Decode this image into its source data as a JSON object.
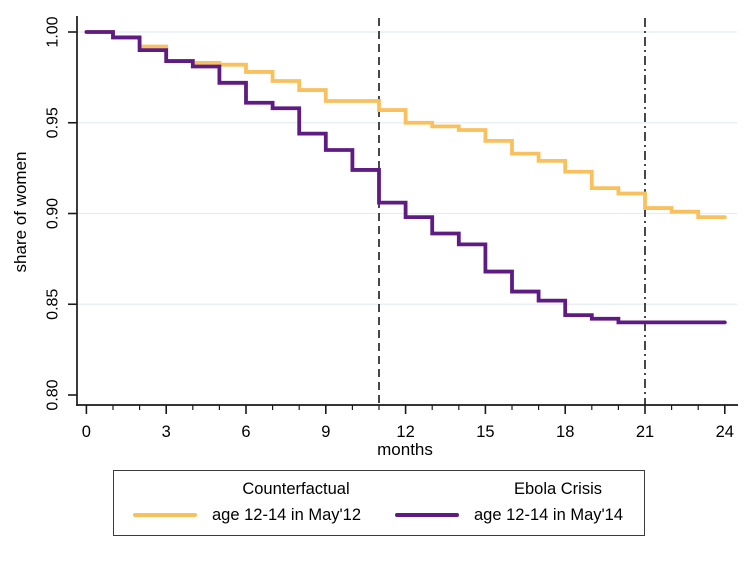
{
  "chart_data": {
    "type": "line",
    "subtype": "step-survival-curve",
    "title": "",
    "xlabel": "months",
    "ylabel": "share of women",
    "xlim": [
      0,
      24
    ],
    "ylim": [
      0.8,
      1.005
    ],
    "grid": true,
    "grid_color": "#e4edf2",
    "axis_color": "#1a1a1a",
    "x_ticks_major": [
      0,
      3,
      6,
      9,
      12,
      15,
      18,
      21,
      24
    ],
    "x_ticks_minor": [
      1,
      2,
      4,
      5,
      7,
      8,
      10,
      11,
      12,
      13,
      14,
      16,
      17,
      19,
      20,
      22,
      23
    ],
    "y_ticks": [
      "1.00",
      "0.95",
      "0.90",
      "0.85",
      "0.80"
    ],
    "y_tick_values": [
      1.0,
      0.95,
      0.9,
      0.85,
      0.8
    ],
    "gridlines_y": [
      1.0,
      0.95,
      0.9,
      0.85
    ],
    "x": [
      0,
      1,
      2,
      3,
      4,
      5,
      6,
      7,
      8,
      9,
      10,
      11,
      12,
      13,
      14,
      15,
      16,
      17,
      18,
      19,
      20,
      21,
      22,
      23,
      24
    ],
    "series": [
      {
        "name": "counterfactual",
        "legend_title": "Counterfactual",
        "legend_label": "age 12-14 in May'12",
        "color": "#f9c05e",
        "values": [
          1.0,
          0.997,
          0.992,
          0.984,
          0.983,
          0.982,
          0.978,
          0.973,
          0.968,
          0.962,
          0.962,
          0.957,
          0.95,
          0.948,
          0.946,
          0.94,
          0.933,
          0.929,
          0.923,
          0.914,
          0.911,
          0.903,
          0.901,
          0.898,
          0.898
        ]
      },
      {
        "name": "ebola-crisis",
        "legend_title": "Ebola Crisis",
        "legend_label": "age 12-14 in May'14",
        "color": "#5e1c82",
        "values": [
          1.0,
          0.997,
          0.99,
          0.984,
          0.981,
          0.972,
          0.961,
          0.958,
          0.944,
          0.935,
          0.924,
          0.906,
          0.898,
          0.889,
          0.883,
          0.868,
          0.857,
          0.852,
          0.844,
          0.842,
          0.84,
          0.84,
          0.84,
          0.84,
          0.84
        ]
      }
    ],
    "reference_lines": [
      {
        "x": 11,
        "style": "dashed"
      },
      {
        "x": 21,
        "style": "dash-dot"
      }
    ],
    "legend_position": "bottom"
  },
  "legend": {
    "entries": [
      {
        "title": "Counterfactual",
        "label": "age 12-14 in May'12"
      },
      {
        "title": "Ebola Crisis",
        "label": "age 12-14 in May'14"
      }
    ]
  }
}
